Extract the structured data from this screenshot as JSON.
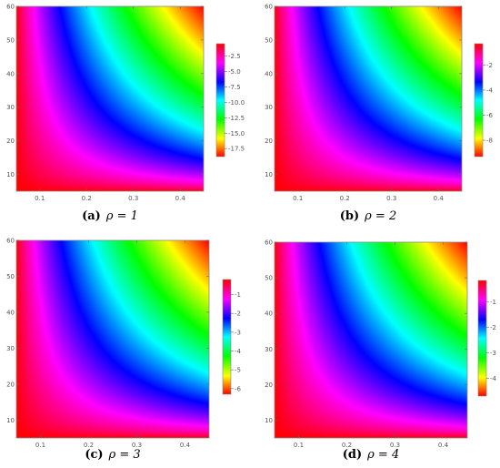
{
  "chart_data": [
    {
      "type": "heatmap",
      "caption_tag": "(a)",
      "caption_equation": "ρ = 1",
      "x_ticks": [
        "0.1",
        "0.2",
        "0.3",
        "0.4"
      ],
      "x_tick_values": [
        0.1,
        0.2,
        0.3,
        0.4
      ],
      "y_ticks": [
        "10",
        "20",
        "30",
        "40",
        "50",
        "60"
      ],
      "y_tick_values": [
        10,
        20,
        30,
        40,
        50,
        60
      ],
      "xlim": [
        0.05,
        0.45
      ],
      "ylim": [
        5,
        60
      ],
      "colorbar_ticks": [
        "-2.5",
        "-5.0",
        "-7.5",
        "-10.0",
        "-12.5",
        "-15.0",
        "-17.5"
      ],
      "colorbar_values": [
        -2.5,
        -5.0,
        -7.5,
        -10.0,
        -12.5,
        -15.0,
        -17.5
      ],
      "colorbar_range": [
        -18.8,
        -0.5
      ]
    },
    {
      "type": "heatmap",
      "caption_tag": "(b)",
      "caption_equation": "ρ = 2",
      "x_ticks": [
        "0.1",
        "0.2",
        "0.3",
        "0.4"
      ],
      "x_tick_values": [
        0.1,
        0.2,
        0.3,
        0.4
      ],
      "y_ticks": [
        "10",
        "20",
        "30",
        "40",
        "50",
        "60"
      ],
      "y_tick_values": [
        10,
        20,
        30,
        40,
        50,
        60
      ],
      "xlim": [
        0.05,
        0.45
      ],
      "ylim": [
        5,
        60
      ],
      "colorbar_ticks": [
        "-2",
        "-4",
        "-6",
        "-8"
      ],
      "colorbar_values": [
        -2,
        -4,
        -6,
        -8
      ],
      "colorbar_range": [
        -9.3,
        -0.3
      ]
    },
    {
      "type": "heatmap",
      "caption_tag": "(c)",
      "caption_equation": "ρ = 3",
      "x_ticks": [
        "0.1",
        "0.2",
        "0.3",
        "0.4"
      ],
      "x_tick_values": [
        0.1,
        0.2,
        0.3,
        0.4
      ],
      "y_ticks": [
        "10",
        "20",
        "30",
        "40",
        "50",
        "60"
      ],
      "y_tick_values": [
        10,
        20,
        30,
        40,
        50,
        60
      ],
      "xlim": [
        0.05,
        0.45
      ],
      "ylim": [
        5,
        60
      ],
      "colorbar_ticks": [
        "-1",
        "-2",
        "-3",
        "-4",
        "-5",
        "-6"
      ],
      "colorbar_values": [
        -1,
        -2,
        -3,
        -4,
        -5,
        -6
      ],
      "colorbar_range": [
        -6.3,
        -0.2
      ]
    },
    {
      "type": "heatmap",
      "caption_tag": "(d)",
      "caption_equation": "ρ = 4",
      "x_ticks": [
        "0.1",
        "0.2",
        "0.3",
        "0.4"
      ],
      "x_tick_values": [
        0.1,
        0.2,
        0.3,
        0.4
      ],
      "y_ticks": [
        "10",
        "20",
        "30",
        "40",
        "50",
        "60"
      ],
      "y_tick_values": [
        10,
        20,
        30,
        40,
        50,
        60
      ],
      "xlim": [
        0.05,
        0.45
      ],
      "ylim": [
        5,
        60
      ],
      "colorbar_ticks": [
        "-1",
        "-2",
        "-3",
        "-4"
      ],
      "colorbar_values": [
        -1,
        -2,
        -3,
        -4
      ],
      "colorbar_range": [
        -4.7,
        -0.15
      ]
    }
  ]
}
